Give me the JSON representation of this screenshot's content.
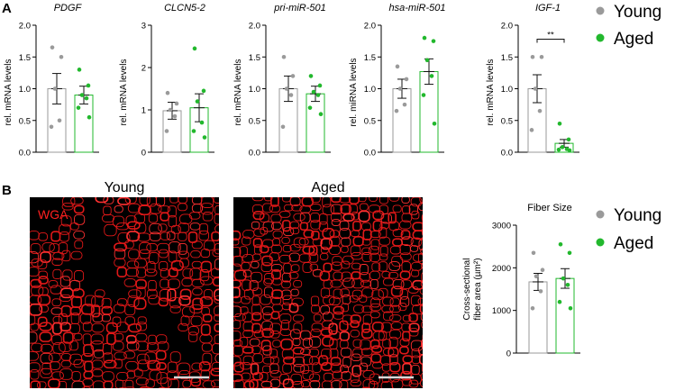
{
  "panel_a_label": "A",
  "panel_b_label": "B",
  "colors": {
    "young": "#9a9a9a",
    "aged": "#22b82d",
    "axis": "#000000",
    "stain": "#ff2020"
  },
  "legend_a": [
    {
      "label": "Young",
      "color": "#9a9a9a"
    },
    {
      "label": "Aged",
      "color": "#22b82d"
    }
  ],
  "legend_b": [
    {
      "label": "Young",
      "color": "#9a9a9a"
    },
    {
      "label": "Aged",
      "color": "#22b82d"
    }
  ],
  "micrographs": {
    "young_title": "Young",
    "aged_title": "Aged",
    "stain_label": "WGA"
  },
  "chart_data": [
    {
      "type": "bar",
      "title": "PDGF",
      "ylabel": "rel. mRNA levels",
      "ylim": [
        0,
        2.0
      ],
      "yticks": [
        "0.0",
        "0.5",
        "1.0",
        "1.5",
        "2.0"
      ],
      "ytick_values": [
        0,
        0.5,
        1.0,
        1.5,
        2.0
      ],
      "categories": [
        "Young",
        "Aged"
      ],
      "series": [
        {
          "name": "Young",
          "mean": 1.0,
          "sem": 0.24,
          "points": [
            1.65,
            1.5,
            1.0,
            0.5,
            0.4
          ]
        },
        {
          "name": "Aged",
          "mean": 0.9,
          "sem": 0.14,
          "points": [
            1.3,
            1.05,
            0.9,
            0.85,
            0.7,
            0.55
          ]
        }
      ],
      "significance": ""
    },
    {
      "type": "bar",
      "title": "CLCN5-2",
      "ylabel": "rel. mRNA levels",
      "ylim": [
        0,
        3
      ],
      "yticks": [
        "0",
        "1",
        "2",
        "3"
      ],
      "ytick_values": [
        0,
        1,
        2,
        3
      ],
      "categories": [
        "Young",
        "Aged"
      ],
      "series": [
        {
          "name": "Young",
          "mean": 0.98,
          "sem": 0.2,
          "points": [
            1.4,
            1.15,
            1.0,
            0.85,
            0.5
          ]
        },
        {
          "name": "Aged",
          "mean": 1.05,
          "sem": 0.33,
          "points": [
            2.45,
            1.45,
            1.2,
            0.7,
            0.5,
            0.35
          ]
        }
      ],
      "significance": ""
    },
    {
      "type": "bar",
      "title": "pri-miR-501",
      "ylabel": "rel. mRNA levels",
      "ylim": [
        0,
        2.0
      ],
      "yticks": [
        "0.0",
        "0.5",
        "1.0",
        "1.5",
        "2.0"
      ],
      "ytick_values": [
        0,
        0.5,
        1.0,
        1.5,
        2.0
      ],
      "categories": [
        "Young",
        "Aged"
      ],
      "series": [
        {
          "name": "Young",
          "mean": 1.0,
          "sem": 0.2,
          "points": [
            1.5,
            1.2,
            1.0,
            0.9,
            0.4
          ]
        },
        {
          "name": "Aged",
          "mean": 0.92,
          "sem": 0.12,
          "points": [
            1.2,
            1.05,
            0.95,
            0.9,
            0.7,
            0.6
          ]
        }
      ],
      "significance": ""
    },
    {
      "type": "bar",
      "title": "hsa-miR-501",
      "ylabel": "rel. miRNA levels",
      "ylim": [
        0,
        2.0
      ],
      "yticks": [
        "0.0",
        "0.5",
        "1.0",
        "1.5",
        "2.0"
      ],
      "ytick_values": [
        0,
        0.5,
        1.0,
        1.5,
        2.0
      ],
      "categories": [
        "Young",
        "Aged"
      ],
      "series": [
        {
          "name": "Young",
          "mean": 1.0,
          "sem": 0.15,
          "points": [
            1.35,
            1.15,
            1.0,
            0.75,
            0.65
          ]
        },
        {
          "name": "Aged",
          "mean": 1.27,
          "sem": 0.2,
          "points": [
            1.8,
            1.75,
            1.45,
            1.2,
            0.9,
            0.45
          ]
        }
      ],
      "significance": ""
    },
    {
      "type": "bar",
      "title": "IGF-1",
      "ylabel": "rel. mRNA levels",
      "ylim": [
        0,
        2.0
      ],
      "yticks": [
        "0.0",
        "0.5",
        "1.0",
        "1.5",
        "2.0"
      ],
      "ytick_values": [
        0,
        0.5,
        1.0,
        1.5,
        2.0
      ],
      "categories": [
        "Young",
        "Aged"
      ],
      "series": [
        {
          "name": "Young",
          "mean": 1.0,
          "sem": 0.22,
          "points": [
            1.5,
            1.5,
            1.0,
            0.65,
            0.35
          ]
        },
        {
          "name": "Aged",
          "mean": 0.14,
          "sem": 0.06,
          "points": [
            0.45,
            0.2,
            0.08,
            0.05,
            0.04,
            0.03
          ]
        }
      ],
      "significance": "**"
    },
    {
      "type": "bar",
      "title": "Fiber Size",
      "ylabel": "Cross-sectional fiber area (µm²)",
      "ylim": [
        0,
        3000
      ],
      "yticks": [
        "0",
        "1000",
        "2000",
        "3000"
      ],
      "ytick_values": [
        0,
        1000,
        2000,
        3000
      ],
      "categories": [
        "Young",
        "Aged"
      ],
      "series": [
        {
          "name": "Young",
          "mean": 1670,
          "sem": 200,
          "points": [
            2350,
            1950,
            1800,
            1450,
            1050
          ]
        },
        {
          "name": "Aged",
          "mean": 1750,
          "sem": 230,
          "points": [
            2550,
            2350,
            1750,
            1600,
            1200,
            1050
          ]
        }
      ],
      "significance": ""
    }
  ]
}
